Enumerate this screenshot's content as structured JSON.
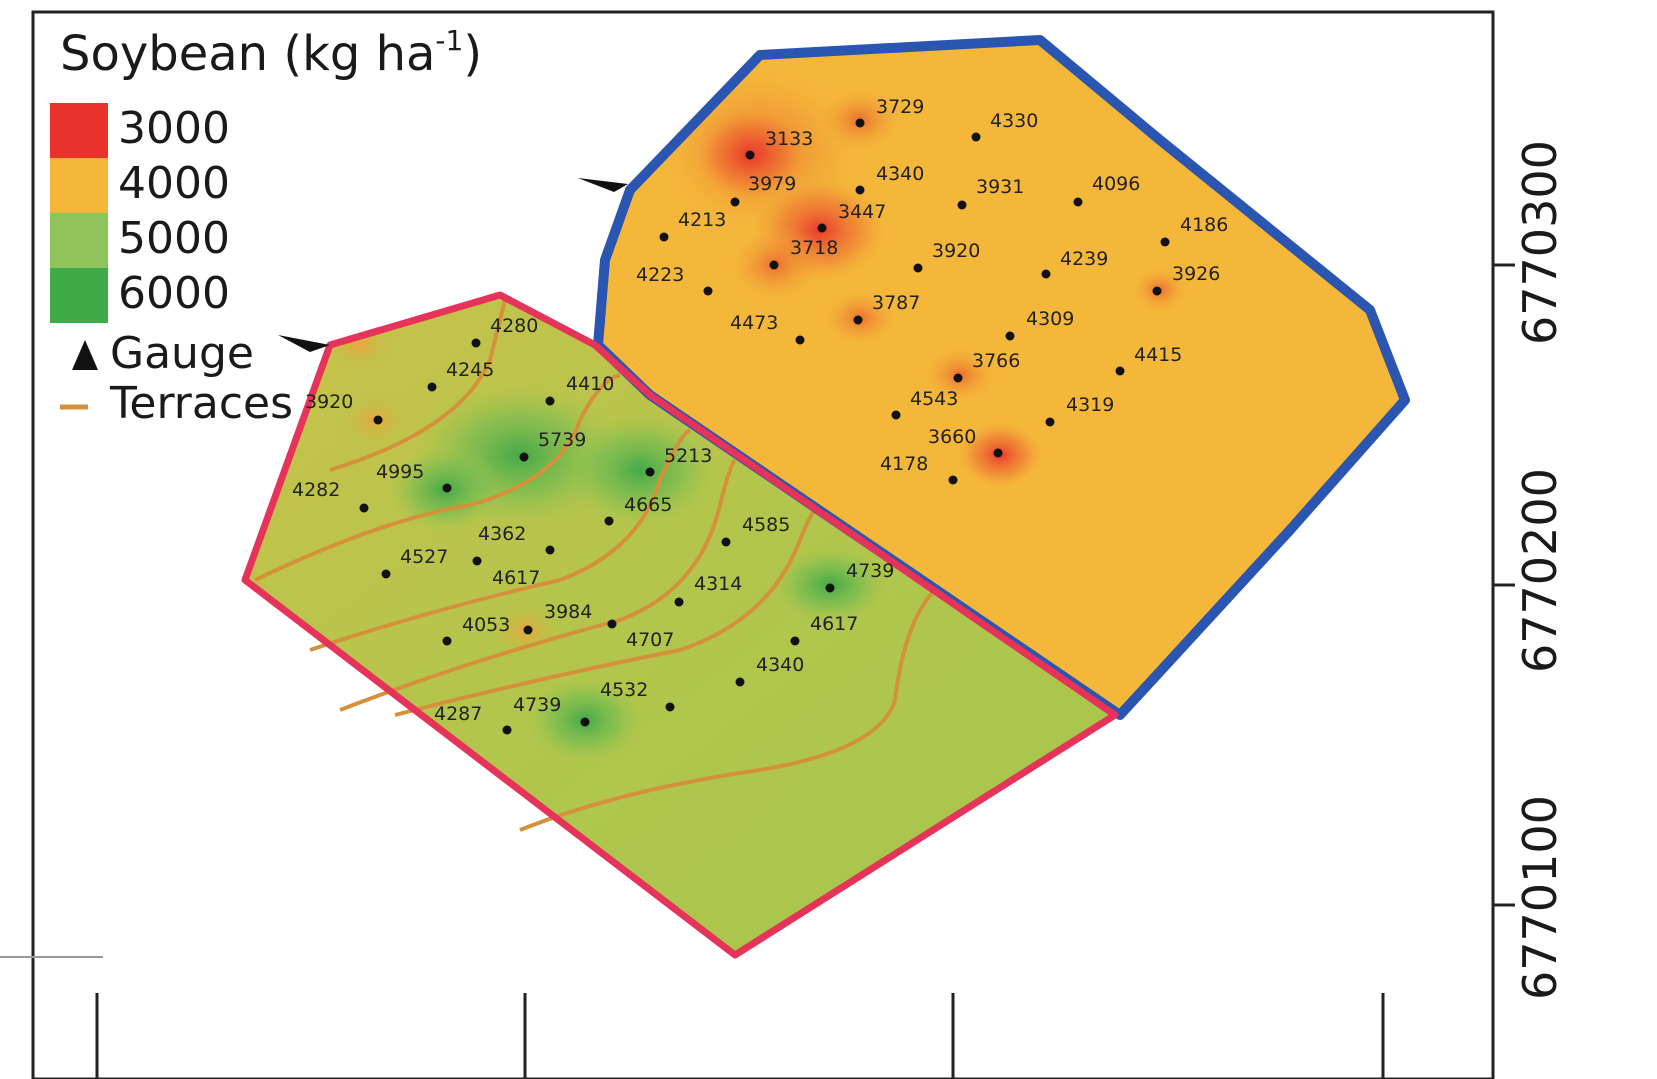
{
  "legend": {
    "title_main": "Soybean (kg ha",
    "title_sup": "-1",
    "title_close": ")",
    "classes": [
      {
        "label": "3000",
        "color": "#e8332c"
      },
      {
        "label": "4000",
        "color": "#f4b73a"
      },
      {
        "label": "5000",
        "color": "#8fc45c"
      },
      {
        "label": "6000",
        "color": "#3eaa48"
      }
    ],
    "gauge_label": "Gauge",
    "terraces_label": "Terraces",
    "terrace_color": "#d4913a"
  },
  "boundaries": {
    "north_field_color": "#2a55b0",
    "south_field_color": "#e5335a"
  },
  "y_axis": {
    "ticks": [
      "6770300",
      "6770200",
      "6770100"
    ]
  },
  "north_points": [
    {
      "v": "3729"
    },
    {
      "v": "4330"
    },
    {
      "v": "3133"
    },
    {
      "v": "4340"
    },
    {
      "v": "3979"
    },
    {
      "v": "3931"
    },
    {
      "v": "4096"
    },
    {
      "v": "3447"
    },
    {
      "v": "4213"
    },
    {
      "v": "4186"
    },
    {
      "v": "3718"
    },
    {
      "v": "3920"
    },
    {
      "v": "4239"
    },
    {
      "v": "4223"
    },
    {
      "v": "3926"
    },
    {
      "v": "3787"
    },
    {
      "v": "4473"
    },
    {
      "v": "4309"
    },
    {
      "v": "3766"
    },
    {
      "v": "4415"
    },
    {
      "v": "4543"
    },
    {
      "v": "4319"
    },
    {
      "v": "3660"
    },
    {
      "v": "4178"
    }
  ],
  "south_points": [
    {
      "v": "4280"
    },
    {
      "v": "4245"
    },
    {
      "v": "4410"
    },
    {
      "v": "3920"
    },
    {
      "v": "5739"
    },
    {
      "v": "5213"
    },
    {
      "v": "4995"
    },
    {
      "v": "4282"
    },
    {
      "v": "4665"
    },
    {
      "v": "4585"
    },
    {
      "v": "4362"
    },
    {
      "v": "4527"
    },
    {
      "v": "4617"
    },
    {
      "v": "4739"
    },
    {
      "v": "4314"
    },
    {
      "v": "3984"
    },
    {
      "v": "4053"
    },
    {
      "v": "4617"
    },
    {
      "v": "4707"
    },
    {
      "v": "4340"
    },
    {
      "v": "4532"
    },
    {
      "v": "4739"
    },
    {
      "v": "4287"
    }
  ]
}
